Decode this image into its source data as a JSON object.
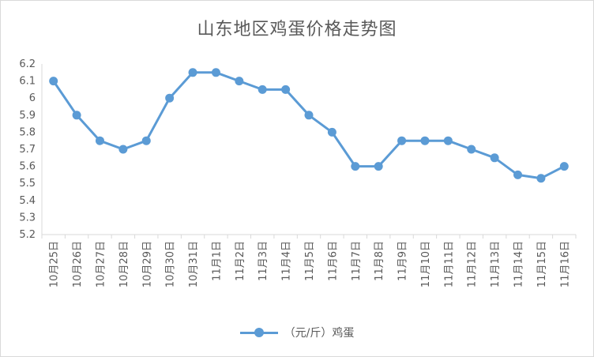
{
  "chart_data": {
    "type": "line",
    "title": "山东地区鸡蛋价格走势图",
    "categories": [
      "10月25日",
      "10月26日",
      "10月27日",
      "10月28日",
      "10月29日",
      "10月30日",
      "10月31日",
      "11月1日",
      "11月2日",
      "11月3日",
      "11月4日",
      "11月5日",
      "11月6日",
      "11月7日",
      "11月8日",
      "11月9日",
      "11月10日",
      "11月11日",
      "11月12日",
      "11月13日",
      "11月14日",
      "11月15日",
      "11月16日"
    ],
    "series": [
      {
        "name": "（元/斤）鸡蛋",
        "values": [
          6.1,
          5.9,
          5.75,
          5.7,
          5.75,
          6.0,
          6.15,
          6.15,
          6.1,
          6.05,
          6.05,
          5.9,
          5.8,
          5.6,
          5.6,
          5.75,
          5.75,
          5.75,
          5.7,
          5.65,
          5.55,
          5.53,
          5.6
        ]
      }
    ],
    "ylim": [
      5.2,
      6.2
    ],
    "yticks": [
      "5.2",
      "5.3",
      "5.4",
      "5.5",
      "5.6",
      "5.7",
      "5.8",
      "5.9",
      "6",
      "6.1",
      "6.2"
    ],
    "grid": false,
    "legend_position": "bottom",
    "colors": {
      "series": "#5b9bd5",
      "axis": "#d9d9d9",
      "text": "#595959"
    }
  }
}
